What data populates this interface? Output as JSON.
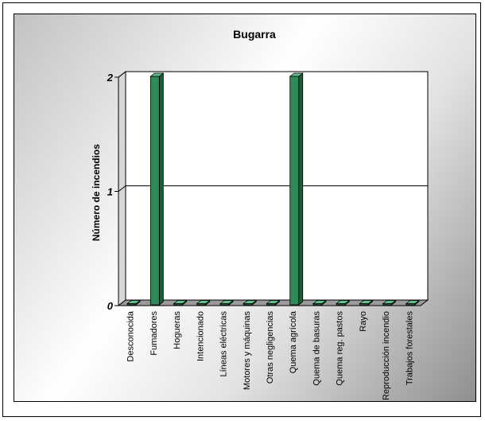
{
  "chart_data": {
    "type": "bar",
    "title": "Bugarra",
    "xlabel": "",
    "ylabel": "Número de incendios",
    "categories": [
      "Desconocida",
      "Fumadores",
      "Hogueras",
      "Intencionado",
      "Líneas eléctricas",
      "Motores y máquinas",
      "Otras negligencias",
      "Quema agrícola",
      "Quema de basuras",
      "Quema reg. pastos",
      "Rayo",
      "Reproducción incendio",
      "Trabajos forestales"
    ],
    "values": [
      0,
      2,
      0,
      0,
      0,
      0,
      0,
      2,
      0,
      0,
      0,
      0,
      0
    ],
    "ylim": [
      0,
      2
    ],
    "yticks": [
      0,
      1,
      2
    ],
    "grid": true,
    "bar_color": "#2e8b57"
  }
}
